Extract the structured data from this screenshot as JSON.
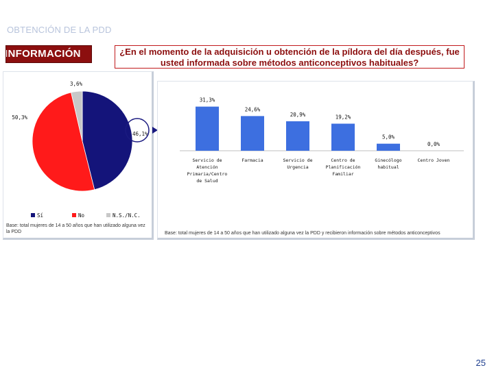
{
  "page": {
    "section_title": "OBTENCIÓN DE LA PDD",
    "info_label": "INFORMACIÓN",
    "question": "¿En el momento de la adquisición u obtención de la píldora del día después, fue usted informada sobre métodos anticonceptivos habituales?",
    "page_number": "25"
  },
  "colors": {
    "title": "#b8c4dc",
    "info_box": "#8c0f0f",
    "question_border": "#c0181a",
    "si": "#14147a",
    "no": "#ff1a1a",
    "nsnc": "#c8c8c8",
    "bar": "#3d6fe0",
    "connector": "#1a1a80"
  },
  "chart_data": [
    {
      "type": "pie",
      "slices": [
        {
          "name": "Sí",
          "value": 46.1,
          "label": "46,1%"
        },
        {
          "name": "No",
          "value": 50.3,
          "label": "50,3%"
        },
        {
          "name": "N.S./N.C.",
          "value": 3.6,
          "label": "3,6%"
        }
      ],
      "legend": [
        "Sí",
        "No",
        "N.S./N.C."
      ],
      "legend_position": "bottom",
      "note": "Base: total mujeres de 14 a 50 años que han utilizado alguna vez la PDD"
    },
    {
      "type": "bar",
      "categories": [
        "Servicio de Atención Primaria/Centro de Salud",
        "Farmacia",
        "Servicio de Urgencia",
        "Centro de Planificación Familiar",
        "Ginecólogo habitual",
        "Centro Joven"
      ],
      "category_lines": [
        [
          "Servicio de",
          "Atención",
          "Primaria/Centro",
          "de Salud"
        ],
        [
          "Farmacia"
        ],
        [
          "Servicio de",
          "Urgencia"
        ],
        [
          "Centro de",
          "Planificación",
          "Familiar"
        ],
        [
          "Ginecólogo",
          "habitual"
        ],
        [
          "Centro Joven"
        ]
      ],
      "values": [
        31.3,
        24.6,
        20.9,
        19.2,
        5.0,
        0.0
      ],
      "value_labels": [
        "31,3%",
        "24,6%",
        "20,9%",
        "19,2%",
        "5,0%",
        "0,0%"
      ],
      "ylim": [
        0,
        35
      ],
      "grid": false,
      "note": "Base: total mujeres de 14 a 50 años que han utilizado alguna vez la PDD y recibieron información sobre métodos anticonceptivos"
    }
  ]
}
